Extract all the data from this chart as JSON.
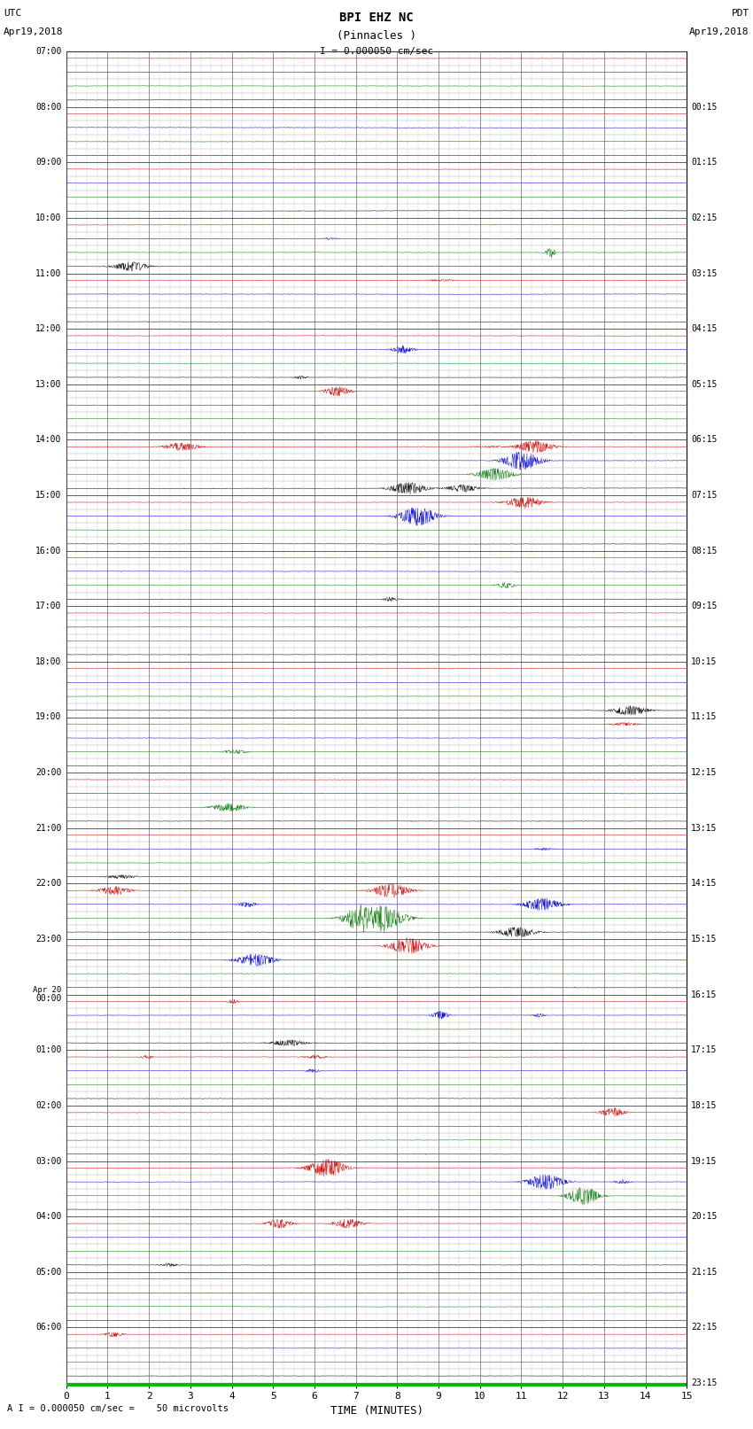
{
  "title_line1": "BPI EHZ NC",
  "title_line2": "(Pinnacles )",
  "scale_label": "I = 0.000050 cm/sec",
  "footer": "A I = 0.000050 cm/sec =    50 microvolts",
  "left_times": [
    "07:00",
    "08:00",
    "09:00",
    "10:00",
    "11:00",
    "12:00",
    "13:00",
    "14:00",
    "15:00",
    "16:00",
    "17:00",
    "18:00",
    "19:00",
    "20:00",
    "21:00",
    "22:00",
    "23:00",
    "Apr 20\n00:00",
    "01:00",
    "02:00",
    "03:00",
    "04:00",
    "05:00",
    "06:00"
  ],
  "right_times": [
    "00:15",
    "01:15",
    "02:15",
    "03:15",
    "04:15",
    "05:15",
    "06:15",
    "07:15",
    "08:15",
    "09:15",
    "10:15",
    "11:15",
    "12:15",
    "13:15",
    "14:15",
    "15:15",
    "16:15",
    "17:15",
    "18:15",
    "19:15",
    "20:15",
    "21:15",
    "22:15",
    "23:15"
  ],
  "n_rows": 24,
  "n_subrows": 4,
  "row_colors": [
    "#cc0000",
    "#0000cc",
    "#007700",
    "#000000"
  ],
  "bg_color": "#ffffff",
  "x_ticks": [
    0,
    1,
    2,
    3,
    4,
    5,
    6,
    7,
    8,
    9,
    10,
    11,
    12,
    13,
    14,
    15
  ],
  "xlabel": "TIME (MINUTES)",
  "seed": 42
}
